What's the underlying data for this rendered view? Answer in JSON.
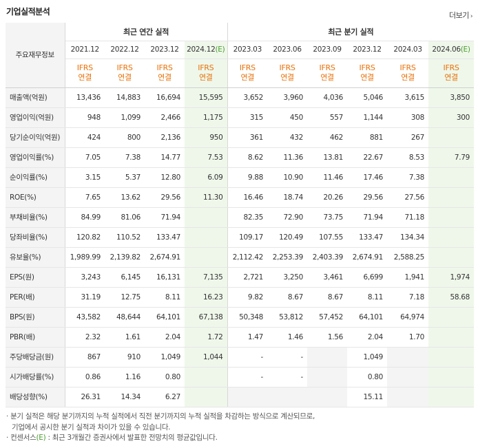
{
  "header": {
    "title": "기업실적분석",
    "more_label": "더보기"
  },
  "table": {
    "corner_label": "주요재무정보",
    "annual_group": "최근 연간 실적",
    "quarter_group": "최근 분기 실적",
    "annual_periods": [
      "2021.12",
      "2022.12",
      "2023.12",
      "2024.12"
    ],
    "quarter_periods": [
      "2023.03",
      "2023.06",
      "2023.09",
      "2023.12",
      "2024.03",
      "2024.06"
    ],
    "estimate_mark": "(E)",
    "ifrs_line1": "IFRS",
    "ifrs_line2": "연결",
    "rows": [
      {
        "label": "매출액(억원)",
        "values": [
          "13,436",
          "14,883",
          "16,694",
          "15,595",
          "3,652",
          "3,960",
          "4,036",
          "5,046",
          "3,615",
          "3,850"
        ]
      },
      {
        "label": "영업이익(억원)",
        "values": [
          "948",
          "1,099",
          "2,466",
          "1,175",
          "315",
          "450",
          "557",
          "1,144",
          "308",
          "300"
        ]
      },
      {
        "label": "당기순이익(억원)",
        "values": [
          "424",
          "800",
          "2,136",
          "950",
          "361",
          "432",
          "462",
          "881",
          "267",
          ""
        ]
      },
      {
        "label": "영업이익률(%)",
        "values": [
          "7.05",
          "7.38",
          "14.77",
          "7.53",
          "8.62",
          "11.36",
          "13.81",
          "22.67",
          "8.53",
          "7.79"
        ]
      },
      {
        "label": "순이익률(%)",
        "values": [
          "3.15",
          "5.37",
          "12.80",
          "6.09",
          "9.88",
          "10.90",
          "11.46",
          "17.46",
          "7.38",
          ""
        ]
      },
      {
        "label": "ROE(%)",
        "values": [
          "7.65",
          "13.62",
          "29.56",
          "11.30",
          "16.46",
          "18.74",
          "20.26",
          "29.56",
          "27.56",
          ""
        ]
      },
      {
        "label": "부채비율(%)",
        "values": [
          "84.99",
          "81.06",
          "71.94",
          "",
          "82.35",
          "72.90",
          "73.75",
          "71.94",
          "71.18",
          ""
        ]
      },
      {
        "label": "당좌비율(%)",
        "values": [
          "120.82",
          "110.52",
          "133.47",
          "",
          "109.17",
          "120.49",
          "107.55",
          "133.47",
          "134.34",
          ""
        ]
      },
      {
        "label": "유보율(%)",
        "values": [
          "1,989.99",
          "2,139.82",
          "2,674.91",
          "",
          "2,112.42",
          "2,253.39",
          "2,403.39",
          "2,674.91",
          "2,588.25",
          ""
        ]
      },
      {
        "label": "EPS(원)",
        "values": [
          "3,243",
          "6,145",
          "16,131",
          "7,135",
          "2,721",
          "3,250",
          "3,461",
          "6,699",
          "1,941",
          "1,974"
        ]
      },
      {
        "label": "PER(배)",
        "values": [
          "31.19",
          "12.75",
          "8.11",
          "16.23",
          "9.82",
          "8.67",
          "8.67",
          "8.11",
          "7.18",
          "58.68"
        ]
      },
      {
        "label": "BPS(원)",
        "values": [
          "43,582",
          "48,644",
          "64,101",
          "67,138",
          "50,348",
          "53,812",
          "57,452",
          "64,101",
          "64,974",
          ""
        ]
      },
      {
        "label": "PBR(배)",
        "values": [
          "2.32",
          "1.61",
          "2.04",
          "1.72",
          "1.47",
          "1.46",
          "1.56",
          "2.04",
          "1.70",
          ""
        ]
      },
      {
        "label": "주당배당금(원)",
        "values": [
          "867",
          "910",
          "1,049",
          "1,044",
          "-",
          "-",
          "",
          "1,049",
          "",
          ""
        ]
      },
      {
        "label": "시가배당률(%)",
        "values": [
          "0.86",
          "1.16",
          "0.80",
          "",
          "-",
          "-",
          "",
          "0.80",
          "",
          ""
        ]
      },
      {
        "label": "배당성향(%)",
        "values": [
          "26.31",
          "14.34",
          "6.27",
          "",
          "",
          "",
          "",
          "15.11",
          "",
          ""
        ]
      }
    ]
  },
  "notes": {
    "line1": "· 분기 실적은 해당 분기까지의 누적 실적에서 직전 분기까지의 누적 실적을 차감하는 방식으로 계산되므로,",
    "line2": "기업에서 공시한 분기 실적과 차이가 있을 수 있습니다.",
    "line3_pre": "· 컨센서스",
    "line3_mark": "(E)",
    "line3_post": " : 최근 3개월간 증권사에서 발표한 전망치의 평균값입니다."
  },
  "colors": {
    "ifrs": "#e8710a",
    "estimate_bg": "#eff7ea",
    "estimate_mark": "#4a9d2f",
    "label_bg": "#f4f4f4"
  }
}
